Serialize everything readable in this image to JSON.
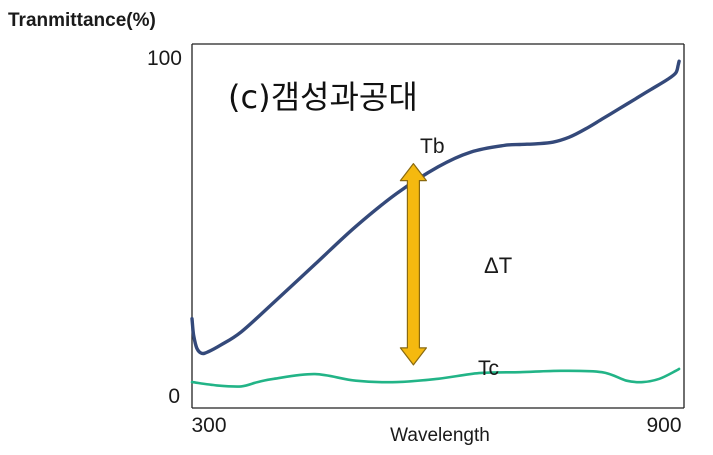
{
  "chart_data": {
    "type": "line",
    "title": "(c)갬성과공대",
    "ylabel": "Tranmittance(%)",
    "xlabel": "Wavelength",
    "xlim": [
      300,
      900
    ],
    "ylim": [
      0,
      100
    ],
    "x_ticks": [
      "300",
      "900"
    ],
    "y_ticks": [
      "0",
      "100"
    ],
    "grid": false,
    "legend": "none",
    "colors": {
      "upper": "#34497a",
      "lower": "#22b487",
      "arrow": "#f5b90f",
      "arrow_edge": "#8a6a10"
    },
    "series": [
      {
        "x": [
          300,
          302,
          306,
          312,
          320,
          335,
          360,
          400,
          450,
          500,
          550,
          600,
          640,
          680,
          700,
          720,
          740,
          760,
          780,
          800,
          820,
          840,
          860,
          880,
          890,
          893,
          894
        ],
        "values": [
          21,
          16,
          12,
          10.5,
          11,
          13,
          17,
          26,
          37.5,
          49,
          59,
          67,
          71.5,
          73.5,
          73.8,
          74,
          74.5,
          76,
          78.5,
          81.5,
          84.5,
          87.5,
          90.5,
          93.5,
          95.5,
          98,
          99
        ]
      },
      {
        "x": [
          300,
          330,
          360,
          380,
          400,
          450,
          500,
          550,
          600,
          650,
          700,
          750,
          800,
          830,
          850,
          870,
          890,
          894
        ],
        "values": [
          1.8,
          0.8,
          0.5,
          1.8,
          2.8,
          4.2,
          2.2,
          1.8,
          2.8,
          4.5,
          4.8,
          5.2,
          4.8,
          2.2,
          1.8,
          2.8,
          5.2,
          5.8
        ]
      }
    ],
    "annotations": [
      {
        "text": "Tb",
        "x": 570,
        "y": 73
      },
      {
        "text": "ΔT",
        "x": 600,
        "y": 37
      },
      {
        "text": "Tc",
        "x": 600,
        "y": 9
      }
    ],
    "arrow": {
      "x": 570,
      "y_top": 68,
      "y_bottom": 7
    }
  }
}
